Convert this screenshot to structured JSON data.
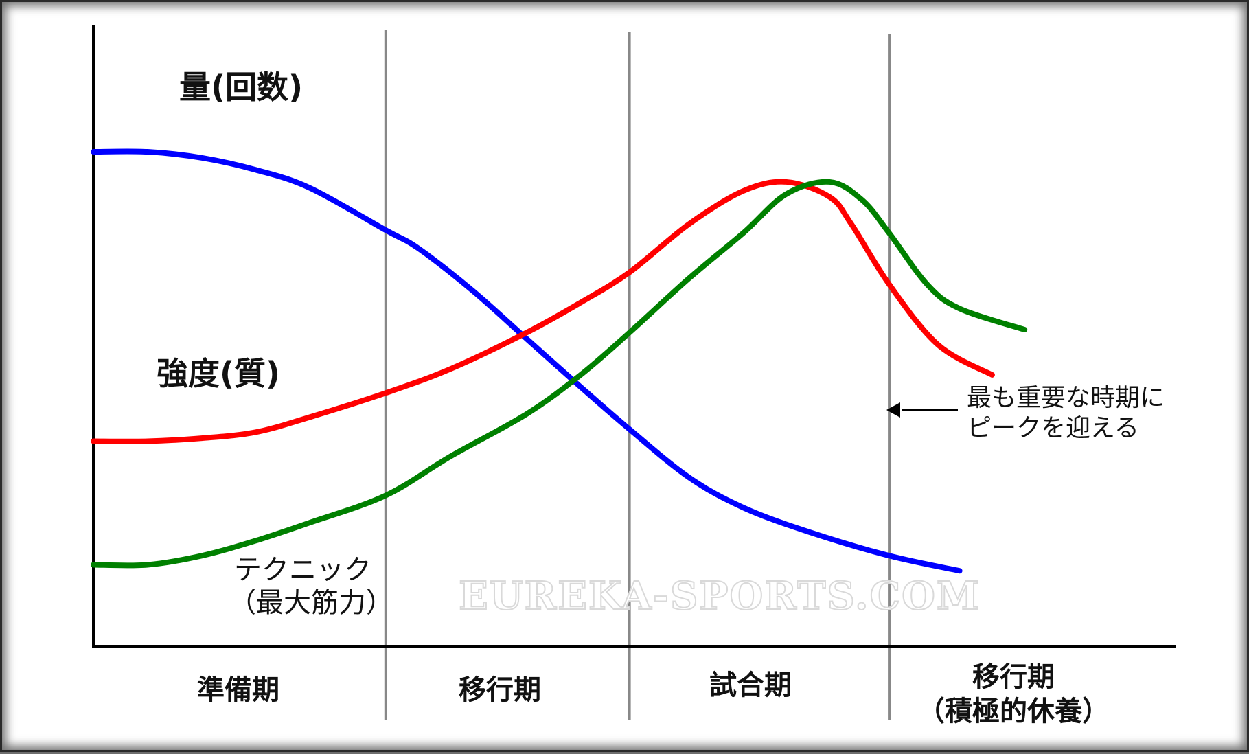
{
  "chart_data": {
    "type": "line",
    "title": "",
    "xlabel": "",
    "ylabel": "",
    "grid": false,
    "legend": "none",
    "phases": [
      {
        "label": "準備期"
      },
      {
        "label": "移行期"
      },
      {
        "label": "試合期"
      },
      {
        "label": "移行期",
        "sublabel": "（積極的休養）"
      }
    ],
    "x_range": [
      0,
      100
    ],
    "y_range": [
      0,
      100
    ],
    "phase_boundaries": [
      27,
      49.5,
      73.5
    ],
    "series": [
      {
        "name": "量(回数)",
        "color": "#0000ff",
        "points": [
          [
            0,
            82
          ],
          [
            5,
            82
          ],
          [
            10,
            81
          ],
          [
            15,
            79
          ],
          [
            20,
            76
          ],
          [
            27,
            69
          ],
          [
            30,
            66
          ],
          [
            35,
            59
          ],
          [
            40,
            51
          ],
          [
            45,
            43
          ],
          [
            49.5,
            36
          ],
          [
            55,
            28
          ],
          [
            60,
            23
          ],
          [
            66,
            19
          ],
          [
            73.5,
            15
          ],
          [
            80,
            12.5
          ]
        ]
      },
      {
        "name": "強度(質)",
        "color": "#ff0000",
        "points": [
          [
            0,
            34
          ],
          [
            5,
            34
          ],
          [
            10,
            34.5
          ],
          [
            15,
            35.5
          ],
          [
            20,
            38
          ],
          [
            27,
            42
          ],
          [
            33,
            46
          ],
          [
            40,
            52
          ],
          [
            45,
            57
          ],
          [
            49.5,
            62
          ],
          [
            55,
            70
          ],
          [
            60,
            75.5
          ],
          [
            64,
            77
          ],
          [
            68,
            74.5
          ],
          [
            70,
            70
          ],
          [
            73.5,
            60
          ],
          [
            78,
            50
          ],
          [
            83,
            45
          ]
        ]
      },
      {
        "name": "テクニック（最大筋力）",
        "color": "#008000",
        "points": [
          [
            0,
            13.5
          ],
          [
            5,
            13.5
          ],
          [
            10,
            15
          ],
          [
            15,
            17.5
          ],
          [
            20,
            20.5
          ],
          [
            27,
            25
          ],
          [
            33,
            31.5
          ],
          [
            40,
            38.5
          ],
          [
            45,
            45
          ],
          [
            49.5,
            52
          ],
          [
            55,
            61
          ],
          [
            60,
            68.5
          ],
          [
            64,
            75
          ],
          [
            68,
            77
          ],
          [
            71,
            74
          ],
          [
            73.5,
            68.5
          ],
          [
            77,
            60
          ],
          [
            80,
            56
          ],
          [
            86,
            52.5
          ]
        ]
      }
    ],
    "annotations": [
      {
        "text_line1": "最も重要な時期に",
        "text_line2": "ピークを迎える",
        "arrow_points_to": "移行期（積極的休養）boundary"
      }
    ],
    "watermark": "EUREKA-SPORTS.COM",
    "colors": {
      "background": "#ffffff",
      "axis": "#000000",
      "divider": "#888888",
      "frame": "#2a2a2a"
    }
  }
}
